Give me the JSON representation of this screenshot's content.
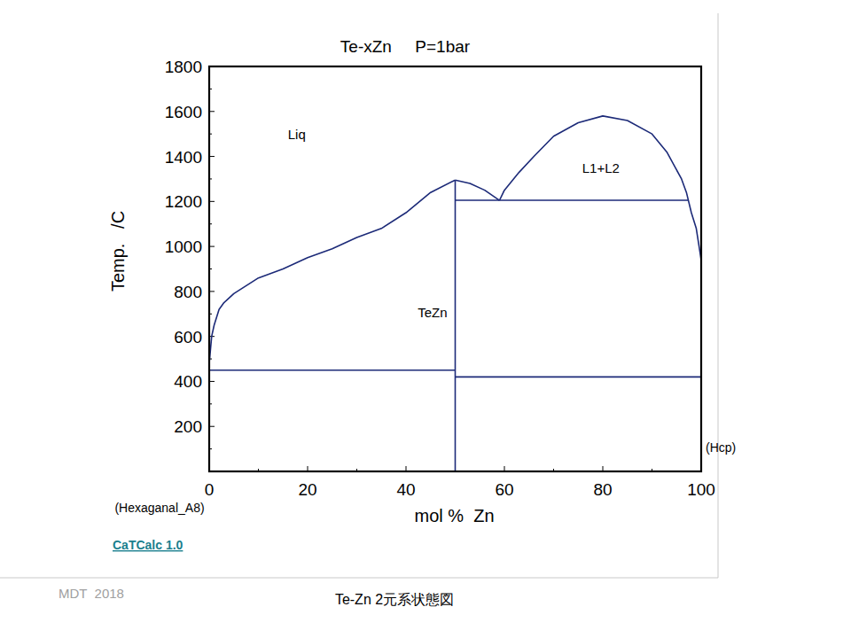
{
  "chart_data": {
    "type": "line",
    "title": "Te-xZn     P=1bar",
    "x_label": "mol %  Zn",
    "y_label": "Temp.   /C",
    "xlim": [
      0,
      100
    ],
    "ylim": [
      0,
      1800
    ],
    "xticks": [
      0,
      20,
      40,
      60,
      80,
      100
    ],
    "yticks": [
      200,
      400,
      600,
      800,
      1000,
      1200,
      1400,
      1600,
      1800
    ],
    "grid": false,
    "series": [
      {
        "color": "#1c2a78",
        "line_style": "solid",
        "x": [
          0,
          0.5,
          1,
          2,
          3,
          5,
          10,
          15,
          20,
          25,
          30,
          35,
          40,
          45,
          50
        ],
        "values": [
          480,
          600,
          650,
          720,
          750,
          790,
          860,
          900,
          950,
          990,
          1040,
          1080,
          1150,
          1240,
          1295
        ]
      },
      {
        "color": "#1c2a78",
        "line_style": "solid",
        "x": [
          50,
          53,
          56,
          59
        ],
        "values": [
          1295,
          1280,
          1250,
          1205
        ]
      },
      {
        "color": "#1c2a78",
        "line_style": "solid",
        "x": [
          59,
          60,
          63,
          66,
          70,
          75,
          80,
          85,
          90,
          93,
          96,
          97,
          98,
          99,
          100
        ],
        "values": [
          1205,
          1250,
          1330,
          1400,
          1490,
          1550,
          1580,
          1560,
          1500,
          1420,
          1300,
          1240,
          1150,
          1080,
          940
        ]
      },
      {
        "color": "#1c2a78",
        "line_style": "solid",
        "x": [
          50,
          50
        ],
        "values": [
          0,
          1295
        ]
      },
      {
        "color": "#1c2a78",
        "line_style": "solid",
        "x": [
          50,
          97.3
        ],
        "values": [
          1205,
          1205
        ]
      },
      {
        "color": "#1c2a78",
        "line_style": "solid",
        "x": [
          0,
          50
        ],
        "values": [
          450,
          450
        ]
      },
      {
        "color": "#1c2a78",
        "line_style": "solid",
        "x": [
          50,
          100
        ],
        "values": [
          420,
          420
        ]
      }
    ],
    "annotations": [
      {
        "text": "Liq",
        "x": 17.8,
        "y": 1497
      },
      {
        "text": "L1+L2",
        "x": 79.6,
        "y": 1347
      },
      {
        "text": "TeZn",
        "x": 45.4,
        "y": 705
      }
    ],
    "phase_labels": [
      {
        "text": "(Hexaganal_A8)",
        "x": 0
      },
      {
        "text": "(Hcp)",
        "x": 100
      }
    ],
    "footer": {
      "software": "CaTCalc 1.0",
      "credit": "MDT  2018",
      "caption": "Te-Zn 2元系状態図"
    }
  }
}
